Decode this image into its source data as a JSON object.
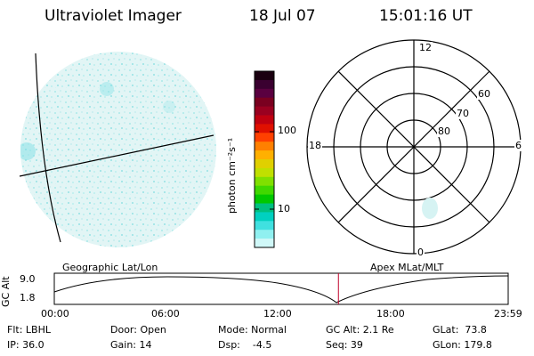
{
  "header": {
    "title": "Ultraviolet Imager",
    "date": "18 Jul 07",
    "time": "15:01:16 UT"
  },
  "colorbar": {
    "unit_label": "photon cm⁻²s⁻¹",
    "ticks": [
      "100",
      "10"
    ],
    "colors": [
      "#1a0010",
      "#3a0030",
      "#5a0040",
      "#7a0020",
      "#9a0020",
      "#c00010",
      "#e01000",
      "#ff4000",
      "#ff8000",
      "#ffb000",
      "#e0d000",
      "#c0e000",
      "#80e000",
      "#40d800",
      "#00c800",
      "#00c080",
      "#00d0c0",
      "#40e0e0",
      "#90f0f0",
      "#d0f8f8"
    ]
  },
  "polar_plot": {
    "mlt_labels": {
      "top": "12",
      "left": "18",
      "right": "6",
      "bottom": "0"
    },
    "lat_labels": [
      "60",
      "70",
      "80"
    ]
  },
  "timeline": {
    "ylabel": "GC Alt",
    "ytick_top": "9.0",
    "ytick_bottom": "1.8",
    "left_label": "Geographic Lat/Lon",
    "right_label": "Apex MLat/MLT",
    "x_ticks": [
      "00:00",
      "06:00",
      "12:00",
      "18:00",
      "23:59"
    ],
    "current_time_fraction": 0.626
  },
  "info": {
    "flt": "Flt: LBHL",
    "ip": "IP: 36.0",
    "door": "Door: Open",
    "gain": "Gain: 14",
    "mode": "Mode: Normal",
    "dsp": "Dsp:    -4.5",
    "gcalt": "GC Alt: 2.1 Re",
    "seq": "Seq: 39",
    "glat": "GLat:  73.8",
    "glon": "GLon: 179.8"
  }
}
